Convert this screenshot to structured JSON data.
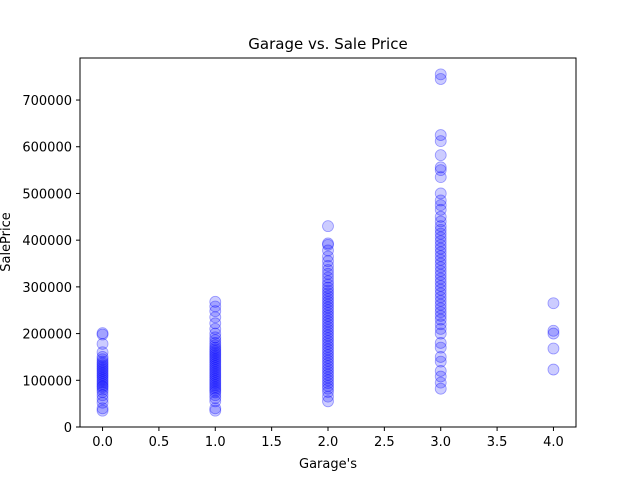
{
  "chart_data": {
    "type": "scatter",
    "title": "Garage vs. Sale Price",
    "xlabel": "Garage's",
    "ylabel": "SalePrice",
    "xlim": [
      -0.2,
      4.2
    ],
    "ylim": [
      0,
      790000
    ],
    "xticks": [
      0.0,
      0.5,
      1.0,
      1.5,
      2.0,
      2.5,
      3.0,
      3.5,
      4.0
    ],
    "xtick_labels": [
      "0.0",
      "0.5",
      "1.0",
      "1.5",
      "2.0",
      "2.5",
      "3.0",
      "3.5",
      "4.0"
    ],
    "yticks": [
      0,
      100000,
      200000,
      300000,
      400000,
      500000,
      600000,
      700000
    ],
    "ytick_labels": [
      "0",
      "100000",
      "200000",
      "300000",
      "400000",
      "500000",
      "600000",
      "700000"
    ],
    "grid": false,
    "marker_color": "#0000ff",
    "marker_alpha": 0.2,
    "series": [
      {
        "points": [
          [
            0,
            35000
          ],
          [
            0,
            40000
          ],
          [
            0,
            52000
          ],
          [
            0,
            60000
          ],
          [
            0,
            68000
          ],
          [
            0,
            75000
          ],
          [
            0,
            80000
          ],
          [
            0,
            85000
          ],
          [
            0,
            88000
          ],
          [
            0,
            92000
          ],
          [
            0,
            96000
          ],
          [
            0,
            100000
          ],
          [
            0,
            104000
          ],
          [
            0,
            108000
          ],
          [
            0,
            112000
          ],
          [
            0,
            116000
          ],
          [
            0,
            120000
          ],
          [
            0,
            124000
          ],
          [
            0,
            128000
          ],
          [
            0,
            132000
          ],
          [
            0,
            136000
          ],
          [
            0,
            140000
          ],
          [
            0,
            145000
          ],
          [
            0,
            150000
          ],
          [
            0,
            160000
          ],
          [
            0,
            178000
          ],
          [
            0,
            198000
          ],
          [
            0,
            201000
          ],
          [
            1,
            35000
          ],
          [
            1,
            40000
          ],
          [
            1,
            55000
          ],
          [
            1,
            62000
          ],
          [
            1,
            68000
          ],
          [
            1,
            74000
          ],
          [
            1,
            78000
          ],
          [
            1,
            82000
          ],
          [
            1,
            86000
          ],
          [
            1,
            90000
          ],
          [
            1,
            94000
          ],
          [
            1,
            98000
          ],
          [
            1,
            102000
          ],
          [
            1,
            106000
          ],
          [
            1,
            110000
          ],
          [
            1,
            114000
          ],
          [
            1,
            118000
          ],
          [
            1,
            122000
          ],
          [
            1,
            126000
          ],
          [
            1,
            130000
          ],
          [
            1,
            134000
          ],
          [
            1,
            138000
          ],
          [
            1,
            142000
          ],
          [
            1,
            146000
          ],
          [
            1,
            150000
          ],
          [
            1,
            154000
          ],
          [
            1,
            158000
          ],
          [
            1,
            162000
          ],
          [
            1,
            166000
          ],
          [
            1,
            170000
          ],
          [
            1,
            175000
          ],
          [
            1,
            180000
          ],
          [
            1,
            186000
          ],
          [
            1,
            192000
          ],
          [
            1,
            200000
          ],
          [
            1,
            210000
          ],
          [
            1,
            222000
          ],
          [
            1,
            235000
          ],
          [
            1,
            248000
          ],
          [
            1,
            258000
          ],
          [
            1,
            268000
          ],
          [
            2,
            55000
          ],
          [
            2,
            65000
          ],
          [
            2,
            75000
          ],
          [
            2,
            82000
          ],
          [
            2,
            88000
          ],
          [
            2,
            94000
          ],
          [
            2,
            100000
          ],
          [
            2,
            106000
          ],
          [
            2,
            112000
          ],
          [
            2,
            118000
          ],
          [
            2,
            124000
          ],
          [
            2,
            130000
          ],
          [
            2,
            136000
          ],
          [
            2,
            142000
          ],
          [
            2,
            148000
          ],
          [
            2,
            154000
          ],
          [
            2,
            160000
          ],
          [
            2,
            166000
          ],
          [
            2,
            172000
          ],
          [
            2,
            178000
          ],
          [
            2,
            184000
          ],
          [
            2,
            190000
          ],
          [
            2,
            196000
          ],
          [
            2,
            202000
          ],
          [
            2,
            208000
          ],
          [
            2,
            214000
          ],
          [
            2,
            220000
          ],
          [
            2,
            226000
          ],
          [
            2,
            232000
          ],
          [
            2,
            238000
          ],
          [
            2,
            244000
          ],
          [
            2,
            250000
          ],
          [
            2,
            256000
          ],
          [
            2,
            262000
          ],
          [
            2,
            268000
          ],
          [
            2,
            274000
          ],
          [
            2,
            280000
          ],
          [
            2,
            286000
          ],
          [
            2,
            292000
          ],
          [
            2,
            298000
          ],
          [
            2,
            305000
          ],
          [
            2,
            312000
          ],
          [
            2,
            320000
          ],
          [
            2,
            328000
          ],
          [
            2,
            336000
          ],
          [
            2,
            345000
          ],
          [
            2,
            355000
          ],
          [
            2,
            365000
          ],
          [
            2,
            378000
          ],
          [
            2,
            390000
          ],
          [
            2,
            393000
          ],
          [
            2,
            430000
          ],
          [
            3,
            82000
          ],
          [
            3,
            95000
          ],
          [
            3,
            108000
          ],
          [
            3,
            120000
          ],
          [
            3,
            140000
          ],
          [
            3,
            150000
          ],
          [
            3,
            170000
          ],
          [
            3,
            180000
          ],
          [
            3,
            200000
          ],
          [
            3,
            210000
          ],
          [
            3,
            220000
          ],
          [
            3,
            230000
          ],
          [
            3,
            238000
          ],
          [
            3,
            246000
          ],
          [
            3,
            254000
          ],
          [
            3,
            262000
          ],
          [
            3,
            270000
          ],
          [
            3,
            278000
          ],
          [
            3,
            286000
          ],
          [
            3,
            294000
          ],
          [
            3,
            302000
          ],
          [
            3,
            310000
          ],
          [
            3,
            318000
          ],
          [
            3,
            326000
          ],
          [
            3,
            334000
          ],
          [
            3,
            342000
          ],
          [
            3,
            350000
          ],
          [
            3,
            358000
          ],
          [
            3,
            366000
          ],
          [
            3,
            374000
          ],
          [
            3,
            382000
          ],
          [
            3,
            390000
          ],
          [
            3,
            398000
          ],
          [
            3,
            406000
          ],
          [
            3,
            414000
          ],
          [
            3,
            422000
          ],
          [
            3,
            430000
          ],
          [
            3,
            440000
          ],
          [
            3,
            450000
          ],
          [
            3,
            465000
          ],
          [
            3,
            475000
          ],
          [
            3,
            485000
          ],
          [
            3,
            500000
          ],
          [
            3,
            535000
          ],
          [
            3,
            550000
          ],
          [
            3,
            556000
          ],
          [
            3,
            582000
          ],
          [
            3,
            612000
          ],
          [
            3,
            625000
          ],
          [
            3,
            745000
          ],
          [
            3,
            755000
          ],
          [
            4,
            123000
          ],
          [
            4,
            168000
          ],
          [
            4,
            200000
          ],
          [
            4,
            206000
          ],
          [
            4,
            265000
          ]
        ]
      }
    ]
  }
}
